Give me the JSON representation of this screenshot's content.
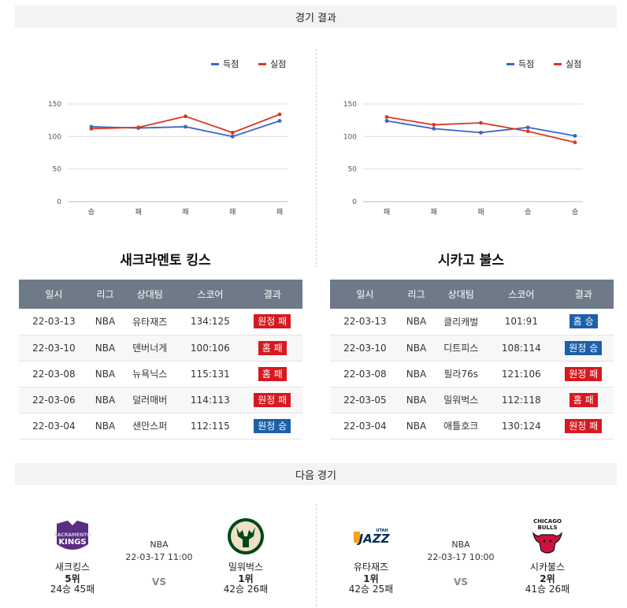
{
  "sections": {
    "results_title": "경기 결과",
    "next_title": "다음 경기"
  },
  "legend": {
    "scored": "득점",
    "conceded": "실점"
  },
  "colors": {
    "scored": "#3a66c4",
    "conceded": "#d83a22",
    "win_badge": "#1d5fa8",
    "loss_badge": "#d71920",
    "header": "#6e7a87"
  },
  "chart_data": [
    {
      "type": "line",
      "categories": [
        "승",
        "패",
        "패",
        "패",
        "패"
      ],
      "ylim": [
        0,
        150
      ],
      "yticks": [
        0,
        50,
        100,
        150
      ],
      "grid": true,
      "legend_position": "top-right",
      "series": [
        {
          "name": "득점",
          "values": [
            115,
            113,
            115,
            100,
            124
          ]
        },
        {
          "name": "실점",
          "values": [
            112,
            114,
            131,
            106,
            134
          ]
        }
      ]
    },
    {
      "type": "line",
      "categories": [
        "패",
        "패",
        "패",
        "승",
        "승"
      ],
      "ylim": [
        0,
        150
      ],
      "yticks": [
        0,
        50,
        100,
        150
      ],
      "grid": true,
      "legend_position": "top-right",
      "series": [
        {
          "name": "득점",
          "values": [
            124,
            112,
            106,
            114,
            101
          ]
        },
        {
          "name": "실점",
          "values": [
            130,
            118,
            121,
            108,
            91
          ]
        }
      ]
    }
  ],
  "headers": [
    "일시",
    "리그",
    "상대팀",
    "스코어",
    "결과"
  ],
  "left": {
    "team_title": "새크라멘토 킹스",
    "rows": [
      {
        "date": "22-03-13",
        "league": "NBA",
        "opponent": "유타재즈",
        "score": "134:125",
        "result": "원정 패",
        "win": false
      },
      {
        "date": "22-03-10",
        "league": "NBA",
        "opponent": "덴버너게",
        "score": "100:106",
        "result": "홈 패",
        "win": false
      },
      {
        "date": "22-03-08",
        "league": "NBA",
        "opponent": "뉴욕닉스",
        "score": "115:131",
        "result": "홈 패",
        "win": false
      },
      {
        "date": "22-03-06",
        "league": "NBA",
        "opponent": "덜러매버",
        "score": "114:113",
        "result": "원정 패",
        "win": false
      },
      {
        "date": "22-03-04",
        "league": "NBA",
        "opponent": "샌안스퍼",
        "score": "112:115",
        "result": "원정 승",
        "win": true
      }
    ]
  },
  "right": {
    "team_title": "시카고 불스",
    "rows": [
      {
        "date": "22-03-13",
        "league": "NBA",
        "opponent": "클리캐벌",
        "score": "101:91",
        "result": "홈 승",
        "win": true
      },
      {
        "date": "22-03-10",
        "league": "NBA",
        "opponent": "디트피스",
        "score": "108:114",
        "result": "원정 승",
        "win": true
      },
      {
        "date": "22-03-08",
        "league": "NBA",
        "opponent": "필라76s",
        "score": "121:106",
        "result": "원정 패",
        "win": false
      },
      {
        "date": "22-03-05",
        "league": "NBA",
        "opponent": "밀워벅스",
        "score": "112:118",
        "result": "홈 패",
        "win": false
      },
      {
        "date": "22-03-04",
        "league": "NBA",
        "opponent": "애틀호크",
        "score": "130:124",
        "result": "원정 패",
        "win": false
      }
    ]
  },
  "next_games": [
    {
      "home": {
        "name": "새크킹스",
        "rank": "5위",
        "record": "24승 45패",
        "logo": "sacramento-kings-logo"
      },
      "league": "NBA",
      "datetime": "22-03-17 11:00",
      "vs": "VS",
      "away": {
        "name": "밀워벅스",
        "rank": "1위",
        "record": "42승 26패",
        "logo": "milwaukee-bucks-logo"
      }
    },
    {
      "home": {
        "name": "유타재즈",
        "rank": "1위",
        "record": "42승 25패",
        "logo": "utah-jazz-logo"
      },
      "league": "NBA",
      "datetime": "22-03-17 10:00",
      "vs": "VS",
      "away": {
        "name": "시카불스",
        "rank": "2위",
        "record": "41승 26패",
        "logo": "chicago-bulls-logo"
      }
    }
  ]
}
